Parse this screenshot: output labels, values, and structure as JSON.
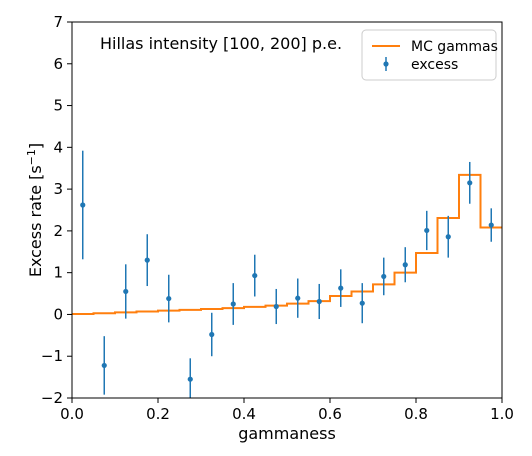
{
  "chart_data": {
    "type": "line",
    "annotation": "Hillas intensity [100, 200] p.e.",
    "xlabel": "gammaness",
    "ylabel_main": "Excess rate [s",
    "ylabel_sup": "−1",
    "ylabel_close": "]",
    "xlim": [
      0.0,
      1.0
    ],
    "ylim": [
      -2,
      7
    ],
    "x_ticks": [
      0.0,
      0.2,
      0.4,
      0.6,
      0.8,
      1.0
    ],
    "x_tick_labels": [
      "0.0",
      "0.2",
      "0.4",
      "0.6",
      "0.8",
      "1.0"
    ],
    "y_ticks": [
      -2,
      -1,
      0,
      1,
      2,
      3,
      4,
      5,
      6,
      7
    ],
    "y_tick_labels": [
      "−2",
      "−1",
      "0",
      "1",
      "2",
      "3",
      "4",
      "5",
      "6",
      "7"
    ],
    "grid": false,
    "legend_position": "top-right",
    "colors": {
      "mc": "#ff7f0e",
      "excess": "#1f77b4"
    },
    "mc_gammas": {
      "name": "MC gammas",
      "bin_edges": [
        0.0,
        0.05,
        0.1,
        0.15,
        0.2,
        0.25,
        0.3,
        0.35,
        0.4,
        0.45,
        0.5,
        0.55,
        0.6,
        0.65,
        0.7,
        0.75,
        0.8,
        0.85,
        0.9,
        0.95,
        1.0
      ],
      "values": [
        0.01,
        0.03,
        0.05,
        0.07,
        0.09,
        0.11,
        0.13,
        0.15,
        0.18,
        0.21,
        0.26,
        0.32,
        0.44,
        0.55,
        0.72,
        1.0,
        1.47,
        2.31,
        3.34,
        2.08
      ]
    },
    "excess": {
      "name": "excess",
      "x": [
        0.025,
        0.075,
        0.125,
        0.175,
        0.225,
        0.275,
        0.325,
        0.375,
        0.425,
        0.475,
        0.525,
        0.575,
        0.625,
        0.675,
        0.725,
        0.775,
        0.825,
        0.875,
        0.925,
        0.975
      ],
      "y": [
        2.62,
        -1.22,
        0.55,
        1.3,
        0.38,
        -1.55,
        -0.48,
        0.25,
        0.93,
        0.19,
        0.39,
        0.31,
        0.63,
        0.27,
        0.91,
        1.19,
        2.01,
        1.86,
        3.15,
        2.14
      ],
      "yerr": [
        1.3,
        0.7,
        0.65,
        0.62,
        0.57,
        0.5,
        0.52,
        0.5,
        0.5,
        0.42,
        0.47,
        0.42,
        0.45,
        0.48,
        0.45,
        0.42,
        0.47,
        0.5,
        0.5,
        0.4
      ]
    }
  }
}
